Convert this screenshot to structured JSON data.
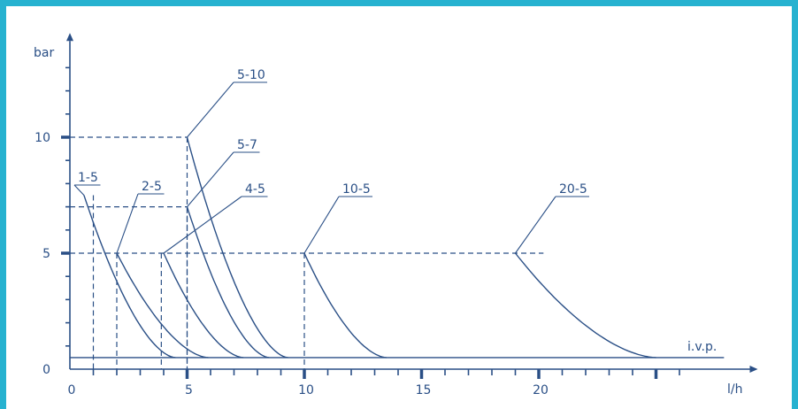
{
  "chart_data": {
    "type": "line",
    "ylabel": "bar",
    "xlabel": "l/h",
    "xlim": [
      0,
      29
    ],
    "ylim": [
      0,
      14
    ],
    "x_ticks": [
      "0",
      "5",
      "10",
      "15",
      "20"
    ],
    "y_ticks": [
      "0",
      "5",
      "10"
    ],
    "baseline": {
      "label": "i.v.p.",
      "y": 0.5
    },
    "series": [
      {
        "name": "1-5",
        "pressure": 7.5,
        "start_flow": 0.6,
        "max_flow": 4.5,
        "dash_y": 7.5,
        "dash_x": 1.0
      },
      {
        "name": "2-5",
        "pressure": 5,
        "start_flow": 2.0,
        "max_flow": 5.9,
        "dash_y": null,
        "dash_x": 2.0
      },
      {
        "name": "4-5",
        "pressure": 5,
        "start_flow": 4.0,
        "max_flow": 7.4,
        "dash_y": null,
        "dash_x": 3.9
      },
      {
        "name": "5-7",
        "pressure": 7,
        "start_flow": 5.0,
        "max_flow": 8.5,
        "dash_y": 7.0,
        "dash_x": 5.0
      },
      {
        "name": "5-10",
        "pressure": 10,
        "start_flow": 5.0,
        "max_flow": 9.3,
        "dash_y": 10,
        "dash_x": 5.0
      },
      {
        "name": "10-5",
        "pressure": 5,
        "start_flow": 10.0,
        "max_flow": 13.5,
        "dash_y": 5,
        "dash_x": 10.0
      },
      {
        "name": "20-5",
        "pressure": 5,
        "start_flow": 19.0,
        "max_flow": 25.0,
        "dash_y": 5,
        "dash_x": null
      }
    ]
  }
}
